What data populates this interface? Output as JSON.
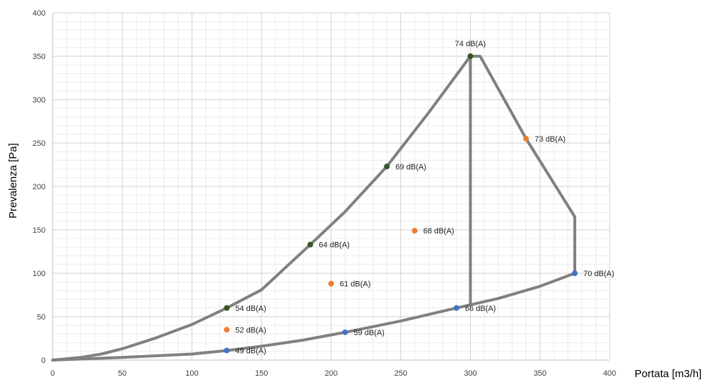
{
  "chart_data": {
    "type": "scatter",
    "title": "",
    "xlabel": "Portata [m3/h]",
    "ylabel": "Prevalenza [Pa]",
    "xlim": [
      0,
      400
    ],
    "ylim": [
      0,
      400
    ],
    "x_ticks": [
      0,
      50,
      100,
      150,
      200,
      250,
      300,
      350,
      400
    ],
    "y_ticks": [
      0,
      50,
      100,
      150,
      200,
      250,
      300,
      350,
      400
    ],
    "grid": true,
    "legend": "none",
    "colors": {
      "curve": "#808080",
      "green": "#375623",
      "orange": "#ed7d31",
      "blue": "#4472c4",
      "major_grid": "#d0d0d0",
      "minor_grid": "#ececec"
    },
    "curves": [
      {
        "points": [
          [
            0,
            0
          ],
          [
            20,
            3
          ],
          [
            35,
            7
          ],
          [
            50,
            13
          ],
          [
            75,
            26
          ],
          [
            100,
            41
          ],
          [
            125,
            60
          ],
          [
            150,
            81
          ],
          [
            185,
            133
          ],
          [
            210,
            171
          ],
          [
            240,
            223
          ],
          [
            270,
            285
          ],
          [
            300,
            350
          ],
          [
            307,
            350
          ],
          [
            340,
            255
          ],
          [
            375,
            165
          ],
          [
            375,
            100
          ]
        ]
      },
      {
        "points": [
          [
            0,
            0
          ],
          [
            50,
            3
          ],
          [
            100,
            7
          ],
          [
            125,
            11
          ],
          [
            150,
            16
          ],
          [
            180,
            23
          ],
          [
            210,
            32
          ],
          [
            250,
            45
          ],
          [
            290,
            60
          ],
          [
            320,
            71
          ],
          [
            350,
            85
          ],
          [
            375,
            100
          ]
        ]
      },
      {
        "points": [
          [
            300,
            350
          ],
          [
            300,
            65
          ]
        ]
      }
    ],
    "points": [
      {
        "x": 300,
        "y": 350,
        "label": "74 dB(A)",
        "color": "green",
        "pos": "above"
      },
      {
        "x": 240,
        "y": 223,
        "label": "69 dB(A)",
        "color": "green",
        "pos": "right"
      },
      {
        "x": 185,
        "y": 133,
        "label": "64 dB(A)",
        "color": "green",
        "pos": "right"
      },
      {
        "x": 125,
        "y": 60,
        "label": "54 dB(A)",
        "color": "green",
        "pos": "right"
      },
      {
        "x": 340,
        "y": 255,
        "label": "73 dB(A)",
        "color": "orange",
        "pos": "right"
      },
      {
        "x": 260,
        "y": 149,
        "label": "68 dB(A)",
        "color": "orange",
        "pos": "right"
      },
      {
        "x": 200,
        "y": 88,
        "label": "61 dB(A)",
        "color": "orange",
        "pos": "right"
      },
      {
        "x": 125,
        "y": 35,
        "label": "52 dB(A)",
        "color": "orange",
        "pos": "right"
      },
      {
        "x": 375,
        "y": 100,
        "label": "70 dB(A)",
        "color": "blue",
        "pos": "right"
      },
      {
        "x": 290,
        "y": 60,
        "label": "66 dB(A)",
        "color": "blue",
        "pos": "right"
      },
      {
        "x": 210,
        "y": 32,
        "label": "59 dB(A)",
        "color": "blue",
        "pos": "right"
      },
      {
        "x": 125,
        "y": 11,
        "label": "49 dB(A)",
        "color": "blue",
        "pos": "right"
      }
    ]
  }
}
